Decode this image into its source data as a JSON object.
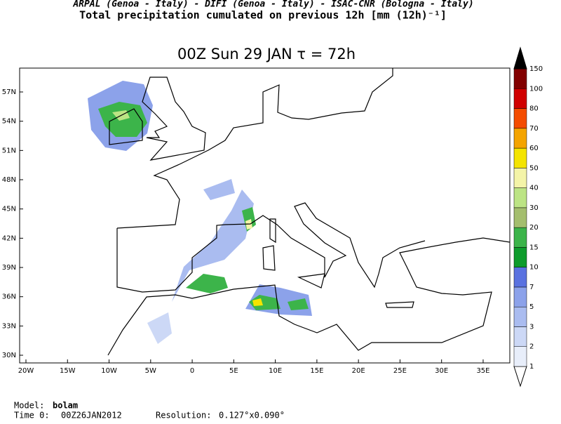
{
  "header": {
    "line1": "ARPAL (Genoa - Italy)  -  DIFI (Genoa - Italy)  -  ISAC-CNR (Bologna - Italy)",
    "line2": "Total precipitation cumulated on previous 12h [mm (12h)⁻¹]"
  },
  "map": {
    "title": "00Z Sun 29 JAN  τ = 72h",
    "lat_labels": [
      "57N",
      "54N",
      "51N",
      "48N",
      "45N",
      "42N",
      "39N",
      "36N",
      "33N",
      "30N"
    ],
    "lon_labels": [
      "20W",
      "15W",
      "10W",
      "5W",
      "0",
      "5E",
      "10E",
      "15E",
      "20E",
      "25E",
      "30E",
      "35E"
    ],
    "colorbar": {
      "levels": [
        1,
        2,
        3,
        5,
        7,
        10,
        15,
        20,
        30,
        40,
        50,
        60,
        70,
        80,
        100,
        150
      ],
      "colors": [
        "#ffffff",
        "#e8eefa",
        "#ccd8f6",
        "#aabcf0",
        "#8ca2ea",
        "#5a72e0",
        "#0e9c2c",
        "#3cb44a",
        "#a4be6e",
        "#bce484",
        "#f4f4a8",
        "#f4e400",
        "#f4a400",
        "#f44c00",
        "#d00000",
        "#820000",
        "#000000"
      ]
    }
  },
  "footer": {
    "model_label": "Model:",
    "model": "bolam",
    "time_label": "Time 0:",
    "time": "00Z26JAN2012",
    "resolution_label": "Resolution:",
    "resolution": "0.127°x0.090°"
  }
}
